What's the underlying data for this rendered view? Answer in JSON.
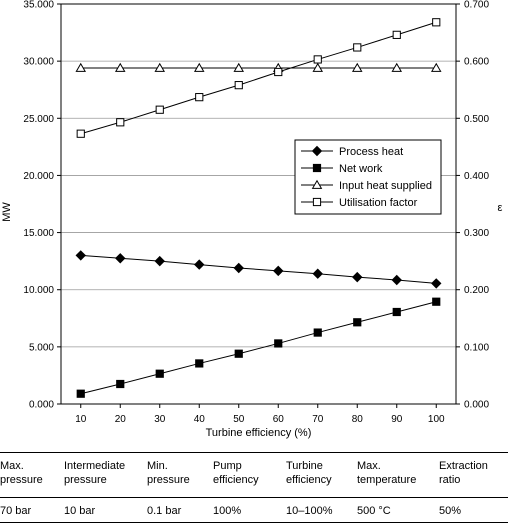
{
  "chart_data": {
    "type": "line",
    "x": [
      10,
      20,
      30,
      40,
      50,
      60,
      70,
      80,
      90,
      100
    ],
    "xlabel": "Turbine efficiency (%)",
    "xlim": [
      5,
      105
    ],
    "xticks": [
      "10",
      "20",
      "30",
      "40",
      "50",
      "60",
      "70",
      "80",
      "90",
      "100"
    ],
    "ylabel": "MW",
    "ylim": [
      0,
      35
    ],
    "yticks": [
      "0.000",
      "5.000",
      "10.000",
      "15.000",
      "20.000",
      "25.000",
      "30.000",
      "35.000"
    ],
    "y2label": "ε",
    "y2lim": [
      0,
      0.7
    ],
    "y2ticks": [
      "0.000",
      "0.100",
      "0.200",
      "0.300",
      "0.400",
      "0.500",
      "0.600",
      "0.700"
    ],
    "grid": "horizontal",
    "legend_position": "center-right",
    "series": [
      {
        "name": "Process heat",
        "axis": "left",
        "marker": "diamond-filled",
        "values": [
          13.0,
          12.75,
          12.5,
          12.2,
          11.9,
          11.65,
          11.4,
          11.1,
          10.85,
          10.55
        ]
      },
      {
        "name": "Net work",
        "axis": "left",
        "marker": "square-filled",
        "values": [
          0.9,
          1.75,
          2.65,
          3.55,
          4.4,
          5.3,
          6.25,
          7.15,
          8.05,
          8.95
        ]
      },
      {
        "name": "Input heat supplied",
        "axis": "left",
        "marker": "triangle-open",
        "values": [
          29.4,
          29.4,
          29.4,
          29.4,
          29.4,
          29.4,
          29.4,
          29.4,
          29.4,
          29.4
        ]
      },
      {
        "name": "Utilisation factor",
        "axis": "right",
        "marker": "square-open",
        "values": [
          0.473,
          0.493,
          0.515,
          0.537,
          0.558,
          0.581,
          0.603,
          0.624,
          0.646,
          0.668
        ]
      }
    ]
  },
  "parameters": {
    "headers": [
      "Max.\npressure",
      "Intermediate\npressure",
      "Min.\npressure",
      "Pump\nefficiency",
      "Turbine\nefficiency",
      "Max.\ntemperature",
      "Extraction\nratio"
    ],
    "values": [
      "70 bar",
      "10 bar",
      "0.1 bar",
      "100%",
      "10–100%",
      "500 °C",
      "50%"
    ]
  },
  "colors": {
    "line": "#000000",
    "grid": "#9a9a9a",
    "background": "#ffffff"
  }
}
